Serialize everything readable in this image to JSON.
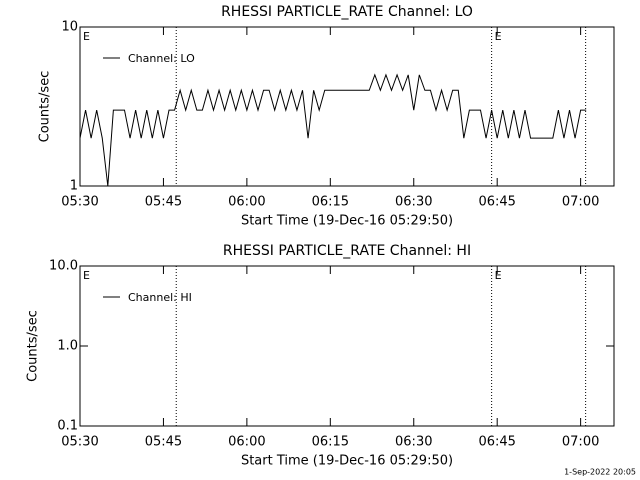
{
  "chart_data": [
    {
      "type": "line",
      "title": "RHESSI PARTICLE_RATE Channel: LO",
      "x_label": "Start Time (19-Dec-16 05:29:50)",
      "y_label": "Counts/sec",
      "x": [
        0,
        1,
        2,
        3,
        4,
        5,
        6,
        7,
        8,
        9,
        10,
        11,
        12,
        13,
        14,
        15,
        16,
        17,
        18,
        19,
        20,
        21,
        22,
        23,
        24,
        25,
        26,
        27,
        28,
        29,
        30,
        31,
        32,
        33,
        34,
        35,
        36,
        37,
        38,
        39,
        40,
        41,
        42,
        43,
        44,
        45,
        46,
        47,
        48,
        49,
        50,
        51,
        52,
        53,
        54,
        55,
        56,
        57,
        58,
        59,
        60,
        61,
        62,
        63,
        64,
        65,
        66,
        67,
        68,
        69,
        70,
        71,
        72,
        73,
        74,
        75,
        76,
        77,
        78,
        79,
        80,
        81,
        82,
        83,
        84,
        85,
        86,
        87,
        88,
        89,
        90,
        91
      ],
      "series": [
        {
          "name": "Channel: LO",
          "color": "#000000",
          "values": [
            2,
            3,
            2,
            3,
            2,
            1,
            3,
            3,
            3,
            2,
            3,
            2,
            3,
            2,
            3,
            2,
            3,
            3,
            4,
            3,
            4,
            3,
            3,
            4,
            3,
            4,
            3,
            4,
            3,
            4,
            3,
            4,
            3,
            4,
            4,
            3,
            4,
            3,
            4,
            3,
            4,
            2,
            4,
            3,
            4,
            4,
            4,
            4,
            4,
            4,
            4,
            4,
            4,
            5,
            4,
            5,
            4,
            5,
            4,
            5,
            3,
            5,
            4,
            4,
            3,
            4,
            3,
            4,
            4,
            2,
            3,
            3,
            3,
            2,
            3,
            2,
            3,
            2,
            3,
            2,
            3,
            2,
            2,
            2,
            2,
            2,
            3,
            2,
            3,
            2,
            3,
            3
          ]
        }
      ],
      "xlim": [
        0,
        96
      ],
      "xticks": [
        {
          "value": 0,
          "label": "05:30"
        },
        {
          "value": 15,
          "label": "05:45"
        },
        {
          "value": 30,
          "label": "06:00"
        },
        {
          "value": 45,
          "label": "06:15"
        },
        {
          "value": 60,
          "label": "06:30"
        },
        {
          "value": 75,
          "label": "06:45"
        },
        {
          "value": 90,
          "label": "07:00"
        }
      ],
      "ylim": [
        1,
        10
      ],
      "yticks": [
        1,
        10
      ],
      "log_y": true,
      "legend": "upper left",
      "vlines": [
        17.3,
        74,
        90.9
      ],
      "annotations": [
        {
          "x": 0,
          "text": "E"
        },
        {
          "x": 74,
          "text": "E"
        }
      ]
    },
    {
      "type": "line",
      "title": "RHESSI PARTICLE_RATE Channel: HI",
      "x_label": "Start Time (19-Dec-16 05:29:50)",
      "y_label": "Counts/sec",
      "x": [],
      "series": [
        {
          "name": "Channel: HI",
          "color": "#000000",
          "values": []
        }
      ],
      "xlim": [
        0,
        96
      ],
      "xticks": [
        {
          "value": 0,
          "label": "05:30"
        },
        {
          "value": 15,
          "label": "05:45"
        },
        {
          "value": 30,
          "label": "06:00"
        },
        {
          "value": 45,
          "label": "06:15"
        },
        {
          "value": 60,
          "label": "06:30"
        },
        {
          "value": 75,
          "label": "06:45"
        },
        {
          "value": 90,
          "label": "07:00"
        }
      ],
      "ylim": [
        0.1,
        10
      ],
      "yticks": [
        {
          "value": 0.1,
          "label": "0.1"
        },
        {
          "value": 1,
          "label": "1.0"
        },
        {
          "value": 10,
          "label": "10.0"
        }
      ],
      "log_y": true,
      "legend": "upper left",
      "vlines": [
        17.3,
        74,
        90.9
      ],
      "annotations": [
        {
          "x": 0,
          "text": "E"
        },
        {
          "x": 74,
          "text": "E"
        }
      ]
    }
  ],
  "footer": "1-Sep-2022 20:05"
}
